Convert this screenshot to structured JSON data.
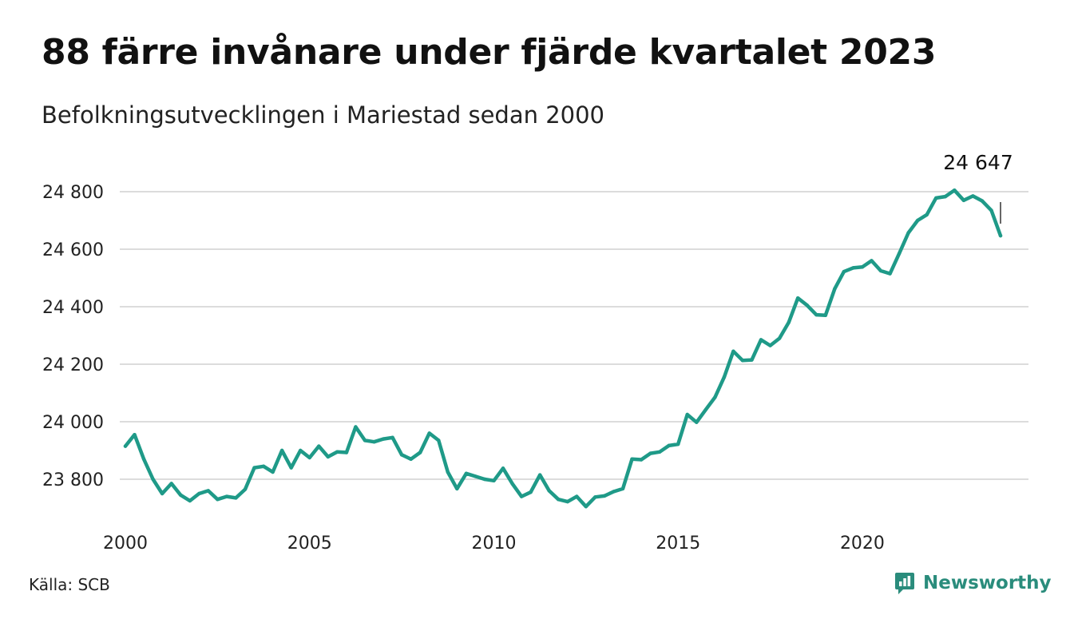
{
  "header": {
    "title": "88 färre invånare under fjärde kvartalet 2023",
    "subtitle": "Befolkningsutvecklingen i Mariestad sedan 2000"
  },
  "footer": {
    "source": "Källa: SCB",
    "brand": "Newsworthy",
    "brand_icon": "newsworthy-logo-icon",
    "brand_color": "#2a8c7c"
  },
  "chart_data": {
    "type": "line",
    "title": "88 färre invånare under fjärde kvartalet 2023",
    "subtitle": "Befolkningsutvecklingen i Mariestad sedan 2000",
    "xlabel": "",
    "ylabel": "",
    "xlim": [
      2000,
      2024
    ],
    "ylim": [
      23700,
      24850
    ],
    "grid": true,
    "line_color": "#1f9a88",
    "x_ticks": [
      {
        "value": 2000,
        "label": "2000"
      },
      {
        "value": 2005,
        "label": "2005"
      },
      {
        "value": 2010,
        "label": "2010"
      },
      {
        "value": 2015,
        "label": "2015"
      },
      {
        "value": 2020,
        "label": "2020"
      }
    ],
    "y_ticks": [
      {
        "value": 23800,
        "label": "23 800"
      },
      {
        "value": 24000,
        "label": "24 000"
      },
      {
        "value": 24200,
        "label": "24 200"
      },
      {
        "value": 24400,
        "label": "24 400"
      },
      {
        "value": 24600,
        "label": "24 600"
      },
      {
        "value": 24800,
        "label": "24 800"
      }
    ],
    "annotation": {
      "x": 2023.75,
      "y": 24647,
      "label": "24 647"
    },
    "series": [
      {
        "x": [
          2000,
          2000.25,
          2000.5,
          2000.75,
          2001,
          2001.25,
          2001.5,
          2001.75,
          2002,
          2002.25,
          2002.5,
          2002.75,
          2003,
          2003.25,
          2003.5,
          2003.75,
          2004,
          2004.25,
          2004.5,
          2004.75,
          2005,
          2005.25,
          2005.5,
          2005.75,
          2006,
          2006.25,
          2006.5,
          2006.75,
          2007,
          2007.25,
          2007.5,
          2007.75,
          2008,
          2008.25,
          2008.5,
          2008.75,
          2009,
          2009.25,
          2009.5,
          2009.75,
          2010,
          2010.25,
          2010.5,
          2010.75,
          2011,
          2011.25,
          2011.5,
          2011.75,
          2012,
          2012.25,
          2012.5,
          2012.75,
          2013,
          2013.25,
          2013.5,
          2013.75,
          2014,
          2014.25,
          2014.5,
          2014.75,
          2015,
          2015.25,
          2015.5,
          2015.75,
          2016,
          2016.25,
          2016.5,
          2016.75,
          2017,
          2017.25,
          2017.5,
          2017.75,
          2018,
          2018.25,
          2018.5,
          2018.75,
          2019,
          2019.25,
          2019.5,
          2019.75,
          2020,
          2020.25,
          2020.5,
          2020.75,
          2021,
          2021.25,
          2021.5,
          2021.75,
          2022,
          2022.25,
          2022.5,
          2022.75,
          2023,
          2023.25,
          2023.5,
          2023.75
        ],
        "values": [
          23915,
          23955,
          23870,
          23800,
          23750,
          23785,
          23745,
          23725,
          23750,
          23760,
          23730,
          23740,
          23735,
          23765,
          23840,
          23845,
          23825,
          23900,
          23840,
          23900,
          23875,
          23915,
          23878,
          23895,
          23893,
          23982,
          23935,
          23930,
          23940,
          23945,
          23885,
          23870,
          23893,
          23960,
          23935,
          23825,
          23767,
          23820,
          23810,
          23800,
          23795,
          23838,
          23785,
          23740,
          23755,
          23815,
          23760,
          23730,
          23722,
          23740,
          23705,
          23738,
          23742,
          23757,
          23767,
          23870,
          23868,
          23890,
          23895,
          23917,
          23922,
          24025,
          23998,
          24042,
          24085,
          24155,
          24245,
          24213,
          24215,
          24285,
          24265,
          24290,
          24345,
          24430,
          24405,
          24372,
          24370,
          24462,
          24522,
          24535,
          24538,
          24560,
          24525,
          24515,
          24585,
          24657,
          24700,
          24720,
          24778,
          24783,
          24805,
          24770,
          24785,
          24768,
          24735,
          24647
        ]
      }
    ]
  }
}
